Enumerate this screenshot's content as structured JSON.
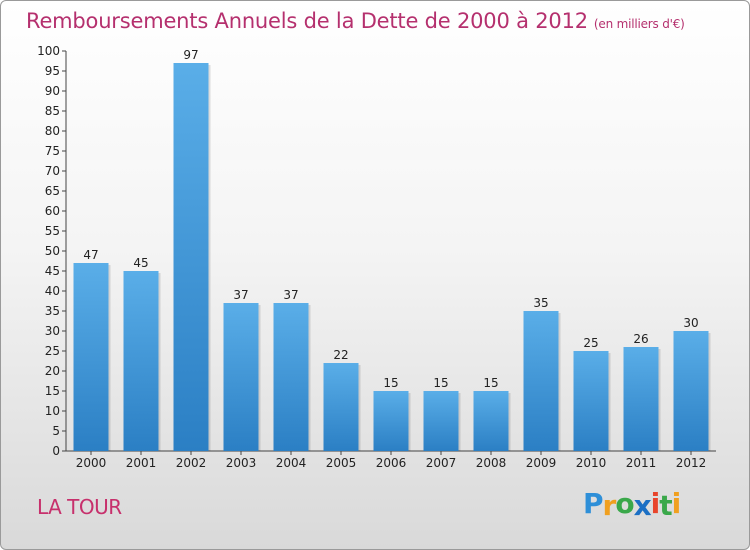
{
  "title": "Remboursements Annuels de la Dette de 2000 à 2012",
  "unit": "(en milliers d'€)",
  "commune": "LA TOUR",
  "logo": {
    "letters": [
      "P",
      "r",
      "o",
      "x",
      "i",
      "t",
      "i"
    ],
    "colors": [
      "#2e8fd8",
      "#f0a020",
      "#3aa84a",
      "#1b6fc4",
      "#e8452c",
      "#3aa84a",
      "#f0a020"
    ]
  },
  "colors": {
    "bar_top": "#5aaee8",
    "bar_bottom": "#2b7fc4",
    "title": "#b5306e"
  },
  "chart_data": {
    "type": "bar",
    "categories": [
      "2000",
      "2001",
      "2002",
      "2003",
      "2004",
      "2005",
      "2006",
      "2007",
      "2008",
      "2009",
      "2010",
      "2011",
      "2012"
    ],
    "values": [
      47,
      45,
      97,
      37,
      37,
      22,
      15,
      15,
      15,
      35,
      25,
      26,
      30
    ],
    "ylim": [
      0,
      100
    ],
    "yticks": [
      0,
      5,
      10,
      15,
      20,
      25,
      30,
      35,
      40,
      45,
      50,
      55,
      60,
      65,
      70,
      75,
      80,
      85,
      90,
      95,
      100
    ],
    "grid": false
  }
}
